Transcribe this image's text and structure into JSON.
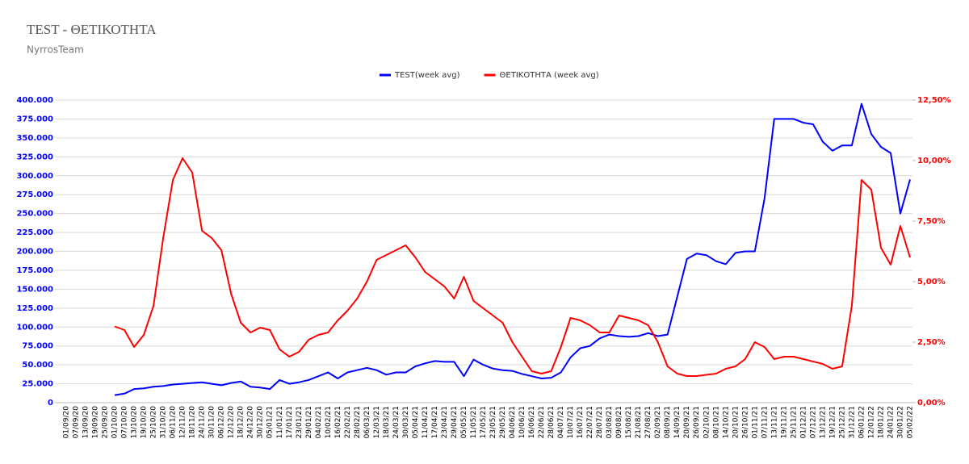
{
  "chart_data": {
    "type": "line",
    "title": "TEST - ΘΕΤΙΚΟΤΗΤΑ",
    "subtitle": "NyrrosTeam",
    "categories": [
      "01/09/20",
      "07/09/20",
      "13/09/20",
      "19/09/20",
      "25/09/20",
      "01/10/20",
      "07/10/20",
      "13/10/20",
      "19/10/20",
      "25/10/20",
      "31/10/20",
      "06/11/20",
      "12/11/20",
      "18/11/20",
      "24/11/20",
      "30/11/20",
      "06/12/20",
      "12/12/20",
      "18/12/20",
      "24/12/20",
      "30/12/20",
      "05/01/21",
      "11/01/21",
      "17/01/21",
      "23/01/21",
      "29/01/21",
      "04/02/21",
      "10/02/21",
      "16/02/21",
      "22/02/21",
      "28/02/21",
      "06/03/21",
      "12/03/21",
      "18/03/21",
      "24/03/21",
      "30/03/21",
      "05/04/21",
      "11/04/21",
      "17/04/21",
      "23/04/21",
      "29/04/21",
      "05/05/21",
      "11/05/21",
      "17/05/21",
      "23/05/21",
      "29/05/21",
      "04/06/21",
      "10/06/21",
      "16/06/21",
      "22/06/21",
      "28/06/21",
      "04/07/21",
      "10/07/21",
      "16/07/21",
      "22/07/21",
      "28/07/21",
      "03/08/21",
      "09/08/21",
      "15/08/21",
      "21/08/21",
      "27/08/21",
      "02/09/21",
      "08/09/21",
      "14/09/21",
      "20/09/21",
      "26/09/21",
      "02/10/21",
      "08/10/21",
      "14/10/21",
      "20/10/21",
      "26/10/21",
      "01/11/21",
      "07/11/21",
      "13/11/21",
      "19/11/21",
      "25/11/21",
      "01/12/21",
      "07/12/21",
      "13/12/21",
      "19/12/21",
      "25/12/21",
      "31/12/21",
      "06/01/22",
      "12/01/22",
      "18/01/22",
      "24/01/22",
      "30/01/22",
      "05/02/22"
    ],
    "series": [
      {
        "name": "TEST(week avg)",
        "color": "#0000ff",
        "axis": "y",
        "values": [
          null,
          null,
          null,
          null,
          null,
          10000,
          12000,
          18000,
          19000,
          21000,
          22000,
          24000,
          25000,
          26000,
          27000,
          25000,
          23000,
          26000,
          28000,
          21000,
          20000,
          18000,
          30000,
          25000,
          27000,
          30000,
          35000,
          40000,
          32000,
          40000,
          43000,
          46000,
          43000,
          37000,
          40000,
          40000,
          48000,
          52000,
          55000,
          54000,
          54000,
          35000,
          57000,
          50000,
          45000,
          43000,
          42000,
          38000,
          35000,
          32000,
          33000,
          40000,
          60000,
          72000,
          75000,
          85000,
          90000,
          88000,
          87000,
          88000,
          92000,
          88000,
          90000,
          140000,
          190000,
          197000,
          195000,
          187000,
          183000,
          198000,
          200000,
          200000,
          270000,
          375000,
          375000,
          375000,
          370000,
          368000,
          345000,
          333000,
          340000,
          340000,
          395000,
          355000,
          338000,
          330000,
          250000,
          295000
        ]
      },
      {
        "name": "ΘΕΤΙΚΟΤΗΤΑ (week avg)",
        "color": "#ff0000",
        "axis": "y2",
        "values": [
          null,
          null,
          null,
          null,
          null,
          3.15,
          3.0,
          2.3,
          2.8,
          4.0,
          6.8,
          9.2,
          10.1,
          9.5,
          7.1,
          6.8,
          6.3,
          4.5,
          3.3,
          2.9,
          3.1,
          3.0,
          2.2,
          1.9,
          2.1,
          2.6,
          2.8,
          2.9,
          3.4,
          3.8,
          4.3,
          5.0,
          5.9,
          6.1,
          6.3,
          6.5,
          6.0,
          5.4,
          5.1,
          4.8,
          4.3,
          5.2,
          4.2,
          3.9,
          3.6,
          3.3,
          2.5,
          1.9,
          1.3,
          1.2,
          1.3,
          2.3,
          3.5,
          3.4,
          3.2,
          2.9,
          2.9,
          3.6,
          3.5,
          3.4,
          3.2,
          2.5,
          1.5,
          1.2,
          1.1,
          1.1,
          1.15,
          1.2,
          1.4,
          1.5,
          1.8,
          2.5,
          2.3,
          1.8,
          1.9,
          1.9,
          1.8,
          1.7,
          1.6,
          1.4,
          1.5,
          4.0,
          9.2,
          8.8,
          6.4,
          5.7,
          7.3,
          6.0
        ]
      }
    ],
    "ylim": [
      0,
      400000
    ],
    "yticks": [
      {
        "value": 0,
        "label": "0"
      },
      {
        "value": 25000,
        "label": "25.000"
      },
      {
        "value": 50000,
        "label": "50.000"
      },
      {
        "value": 75000,
        "label": "75.000"
      },
      {
        "value": 100000,
        "label": "100.000"
      },
      {
        "value": 125000,
        "label": "125.000"
      },
      {
        "value": 150000,
        "label": "150.000"
      },
      {
        "value": 175000,
        "label": "175.000"
      },
      {
        "value": 200000,
        "label": "200.000"
      },
      {
        "value": 225000,
        "label": "225.000"
      },
      {
        "value": 250000,
        "label": "250.000"
      },
      {
        "value": 275000,
        "label": "275.000"
      },
      {
        "value": 300000,
        "label": "300.000"
      },
      {
        "value": 325000,
        "label": "325.000"
      },
      {
        "value": 350000,
        "label": "350.000"
      },
      {
        "value": 375000,
        "label": "375.000"
      },
      {
        "value": 400000,
        "label": "400.000"
      }
    ],
    "y2lim": [
      0,
      12.5
    ],
    "y2ticks": [
      {
        "value": 0,
        "label": "0,00%"
      },
      {
        "value": 2.5,
        "label": "2,50%"
      },
      {
        "value": 5,
        "label": "5,00%"
      },
      {
        "value": 7.5,
        "label": "7,50%"
      },
      {
        "value": 10,
        "label": "10,00%"
      },
      {
        "value": 12.5,
        "label": "12,50%"
      }
    ],
    "grid": true,
    "legend": "top"
  }
}
